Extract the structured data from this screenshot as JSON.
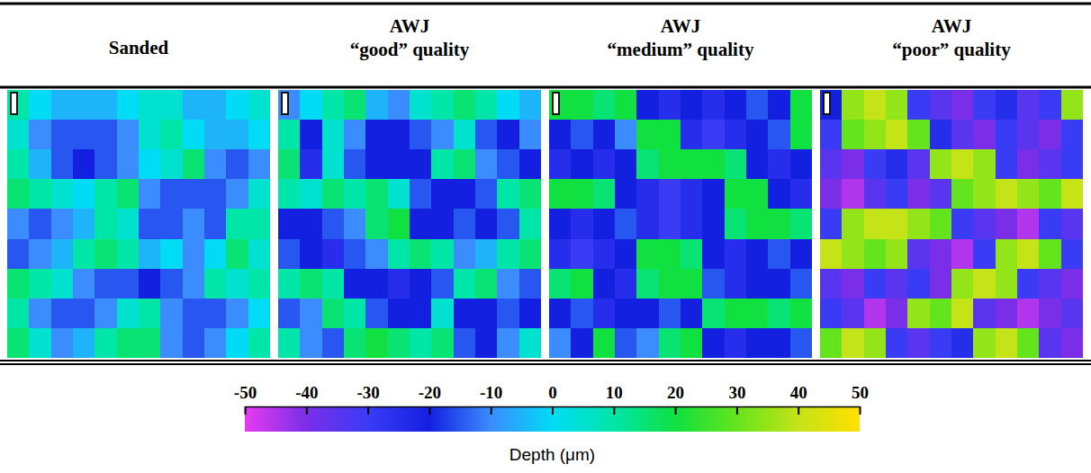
{
  "chart_data": {
    "type": "heatmap",
    "panels": [
      {
        "title": "Sanded",
        "cells": [
          [
            10,
            0,
            -5,
            -5,
            -5,
            0,
            5,
            5,
            -5,
            -5,
            0,
            5
          ],
          [
            5,
            -10,
            -15,
            -15,
            -15,
            -10,
            5,
            10,
            0,
            -5,
            -5,
            0
          ],
          [
            10,
            -5,
            -15,
            -20,
            -15,
            -10,
            0,
            5,
            15,
            -10,
            -15,
            -10
          ],
          [
            15,
            10,
            5,
            0,
            10,
            15,
            -10,
            -15,
            -15,
            -15,
            -10,
            5
          ],
          [
            -10,
            -15,
            -10,
            -5,
            10,
            5,
            -15,
            -15,
            -10,
            -15,
            10,
            10
          ],
          [
            -15,
            -10,
            -5,
            10,
            15,
            10,
            -5,
            0,
            -10,
            0,
            15,
            5
          ],
          [
            15,
            10,
            5,
            -10,
            -15,
            -15,
            -20,
            -15,
            -10,
            10,
            5,
            10
          ],
          [
            10,
            -10,
            -15,
            -15,
            -10,
            5,
            10,
            -10,
            -15,
            -15,
            -10,
            0
          ],
          [
            15,
            5,
            -10,
            -5,
            10,
            15,
            15,
            -10,
            -15,
            -10,
            0,
            10
          ]
        ]
      },
      {
        "title": "AWJ “good” quality",
        "cells": [
          [
            -10,
            0,
            10,
            15,
            -5,
            -10,
            5,
            10,
            15,
            10,
            0,
            -5
          ],
          [
            10,
            -20,
            5,
            -10,
            -20,
            -20,
            -15,
            -10,
            5,
            -15,
            -20,
            -10
          ],
          [
            15,
            -25,
            5,
            -15,
            -20,
            -20,
            -20,
            10,
            15,
            -10,
            -15,
            -20
          ],
          [
            10,
            5,
            15,
            10,
            15,
            5,
            -15,
            -20,
            -20,
            -15,
            10,
            15
          ],
          [
            -20,
            -20,
            -15,
            -10,
            15,
            20,
            -20,
            -20,
            -15,
            -20,
            -15,
            10
          ],
          [
            -15,
            -20,
            -25,
            -15,
            -10,
            10,
            15,
            10,
            -10,
            -5,
            10,
            15
          ],
          [
            10,
            15,
            10,
            -20,
            -20,
            -25,
            -20,
            -15,
            10,
            15,
            -10,
            -15
          ],
          [
            -15,
            -10,
            15,
            10,
            -15,
            -20,
            -20,
            5,
            -20,
            -20,
            -15,
            -20
          ],
          [
            10,
            -10,
            -15,
            15,
            20,
            15,
            10,
            15,
            -15,
            -20,
            -10,
            5
          ]
        ]
      },
      {
        "title": "AWJ “medium” quality",
        "cells": [
          [
            20,
            20,
            15,
            20,
            -20,
            -25,
            -20,
            -25,
            -20,
            -15,
            -20,
            20
          ],
          [
            -20,
            -15,
            -20,
            -10,
            20,
            20,
            -25,
            -30,
            -25,
            -20,
            -15,
            20
          ],
          [
            -25,
            -20,
            -25,
            -20,
            15,
            20,
            20,
            20,
            15,
            -20,
            -25,
            -20
          ],
          [
            20,
            20,
            15,
            -20,
            -25,
            -30,
            -25,
            -20,
            20,
            20,
            -20,
            -25
          ],
          [
            -20,
            -25,
            -20,
            -15,
            -25,
            -30,
            -25,
            -20,
            15,
            20,
            20,
            15
          ],
          [
            -25,
            -30,
            -25,
            -20,
            20,
            20,
            15,
            -20,
            -25,
            -20,
            -15,
            -20
          ],
          [
            15,
            20,
            -20,
            -25,
            15,
            20,
            20,
            -15,
            -25,
            -20,
            -20,
            -15
          ],
          [
            -20,
            -15,
            -25,
            -20,
            -20,
            -15,
            -20,
            15,
            20,
            20,
            15,
            20
          ],
          [
            -10,
            -20,
            20,
            -15,
            -10,
            15,
            20,
            -20,
            -25,
            -20,
            -20,
            -15
          ]
        ]
      },
      {
        "title": "AWJ “poor” quality",
        "cells": [
          [
            -20,
            35,
            40,
            35,
            -30,
            -35,
            -40,
            -30,
            -25,
            -35,
            -30,
            35
          ],
          [
            -30,
            30,
            35,
            40,
            30,
            -25,
            -35,
            -40,
            -30,
            -35,
            -40,
            -30
          ],
          [
            -35,
            -40,
            -30,
            -25,
            -35,
            35,
            40,
            35,
            -30,
            -40,
            -35,
            -30
          ],
          [
            -40,
            -45,
            -35,
            -30,
            -40,
            -35,
            30,
            35,
            40,
            35,
            30,
            40
          ],
          [
            -30,
            35,
            40,
            40,
            35,
            30,
            -30,
            -35,
            -40,
            -45,
            -30,
            -35
          ],
          [
            40,
            35,
            30,
            35,
            -35,
            -40,
            -45,
            -30,
            35,
            40,
            30,
            -30
          ],
          [
            -35,
            -40,
            -30,
            -35,
            -30,
            -40,
            35,
            40,
            35,
            -30,
            -35,
            -40
          ],
          [
            -30,
            -35,
            -45,
            -40,
            35,
            30,
            40,
            -35,
            -40,
            -45,
            -40,
            -35
          ],
          [
            30,
            40,
            35,
            -30,
            -35,
            -30,
            -25,
            35,
            40,
            30,
            -35,
            -40
          ]
        ]
      }
    ],
    "colorbar": {
      "label": "Depth (μm)",
      "range": [
        -50,
        50
      ],
      "ticks": [
        -50,
        -40,
        -30,
        -20,
        -10,
        0,
        10,
        20,
        30,
        40,
        50
      ],
      "colors": [
        "#e63cf0",
        "#7a2ee8",
        "#3a3cf5",
        "#1420e0",
        "#3a8cff",
        "#00dcf5",
        "#00e6a8",
        "#10e040",
        "#64e41c",
        "#c4e418",
        "#ffe000"
      ]
    }
  }
}
